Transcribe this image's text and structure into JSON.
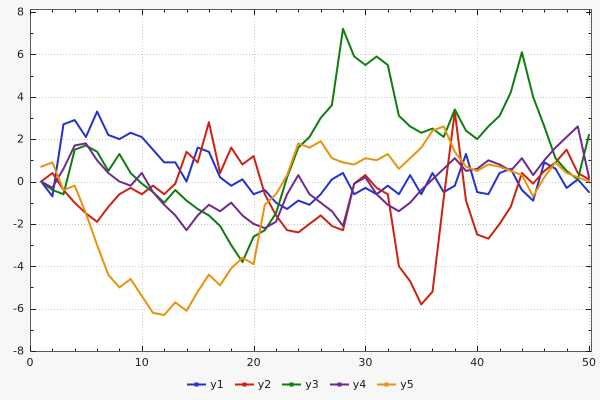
{
  "chart_data": {
    "type": "line",
    "title": "",
    "xlabel": "",
    "ylabel": "",
    "xlim": [
      0,
      50
    ],
    "ylim": [
      -8,
      8
    ],
    "x_ticks": [
      0,
      10,
      20,
      30,
      40,
      50
    ],
    "y_ticks": [
      -8,
      -6,
      -4,
      -2,
      0,
      2,
      4,
      6,
      8
    ],
    "x_minor_step": 2,
    "y_minor_step": 1,
    "grid": true,
    "legend_position": "bottom",
    "background": "#f7f7f7",
    "plot_background": "#ffffff",
    "grid_color": "#c8c8c8",
    "axis_color": "#5a5a5a",
    "text_color": "#1c1c1c",
    "x": [
      1,
      2,
      3,
      4,
      5,
      6,
      7,
      8,
      9,
      10,
      11,
      12,
      13,
      14,
      15,
      16,
      17,
      18,
      19,
      20,
      21,
      22,
      23,
      24,
      25,
      26,
      27,
      28,
      29,
      30,
      31,
      32,
      33,
      34,
      35,
      36,
      37,
      38,
      39,
      40,
      41,
      42,
      43,
      44,
      45,
      46,
      47,
      48,
      49,
      50
    ],
    "series": [
      {
        "name": "y1",
        "color": "#2233cc",
        "values": [
          0.0,
          -0.7,
          2.7,
          2.9,
          2.1,
          3.3,
          2.2,
          2.0,
          2.3,
          2.1,
          1.5,
          0.9,
          0.9,
          0.0,
          1.6,
          1.4,
          0.2,
          -0.2,
          0.1,
          -0.6,
          -0.4,
          -1.0,
          -1.3,
          -0.9,
          -1.1,
          -0.6,
          0.1,
          0.4,
          -0.6,
          -0.3,
          -0.6,
          -0.2,
          -0.6,
          0.3,
          -0.6,
          0.4,
          -0.5,
          -0.2,
          1.3,
          -0.5,
          -0.6,
          0.4,
          0.6,
          -0.4,
          -0.9,
          0.9,
          0.6,
          -0.3,
          0.1,
          -0.5
        ]
      },
      {
        "name": "y2",
        "color": "#cc2211",
        "values": [
          0.0,
          0.4,
          -0.4,
          -1.0,
          -1.5,
          -1.9,
          -1.2,
          -0.6,
          -0.3,
          -0.6,
          -0.2,
          -0.6,
          -0.1,
          1.4,
          0.9,
          2.8,
          0.4,
          1.6,
          0.8,
          1.2,
          -0.6,
          -1.6,
          -2.3,
          -2.4,
          -2.0,
          -1.6,
          -2.1,
          -2.3,
          -0.1,
          0.3,
          -0.3,
          -0.6,
          -4.0,
          -4.7,
          -5.8,
          -5.2,
          -0.8,
          3.3,
          -0.9,
          -2.5,
          -2.7,
          -2.0,
          -1.2,
          0.4,
          -0.1,
          0.5,
          0.9,
          1.5,
          0.4,
          0.1
        ]
      },
      {
        "name": "y3",
        "color": "#0e7d0e",
        "values": [
          0.0,
          -0.4,
          -0.6,
          1.5,
          1.7,
          1.4,
          0.5,
          1.3,
          0.4,
          -0.1,
          -0.5,
          -1.0,
          -0.4,
          -0.9,
          -1.3,
          -1.6,
          -2.1,
          -3.0,
          -3.8,
          -2.6,
          -2.3,
          -1.5,
          0.2,
          1.6,
          2.1,
          3.0,
          3.6,
          7.2,
          5.9,
          5.5,
          5.9,
          5.5,
          3.1,
          2.6,
          2.3,
          2.5,
          2.1,
          3.4,
          2.4,
          2.0,
          2.6,
          3.1,
          4.2,
          6.1,
          4.0,
          2.6,
          1.1,
          0.5,
          0.1,
          2.2
        ]
      },
      {
        "name": "y4",
        "color": "#702a8c",
        "values": [
          0.0,
          -0.3,
          0.6,
          1.7,
          1.8,
          1.0,
          0.4,
          0.0,
          -0.2,
          0.4,
          -0.5,
          -1.1,
          -1.6,
          -2.3,
          -1.6,
          -1.1,
          -1.4,
          -1.0,
          -1.6,
          -2.0,
          -2.2,
          -1.9,
          -0.6,
          0.3,
          -0.6,
          -1.0,
          -1.4,
          -2.1,
          -0.1,
          0.2,
          -0.6,
          -1.1,
          -1.4,
          -1.0,
          -0.4,
          0.1,
          0.6,
          1.1,
          0.5,
          0.6,
          1.0,
          0.8,
          0.5,
          1.1,
          0.3,
          1.0,
          1.6,
          2.1,
          2.6,
          0.2
        ]
      },
      {
        "name": "y5",
        "color": "#e8920e",
        "values": [
          0.7,
          0.9,
          -0.4,
          -0.2,
          -1.5,
          -3.0,
          -4.4,
          -5.0,
          -4.6,
          -5.4,
          -6.2,
          -6.3,
          -5.7,
          -6.1,
          -5.2,
          -4.4,
          -4.9,
          -4.1,
          -3.6,
          -3.9,
          -1.1,
          -0.6,
          0.3,
          1.8,
          1.6,
          1.9,
          1.1,
          0.9,
          0.8,
          1.1,
          1.0,
          1.3,
          0.6,
          1.1,
          1.6,
          2.4,
          2.6,
          1.4,
          0.7,
          0.5,
          0.8,
          0.7,
          0.5,
          0.3,
          -0.7,
          0.2,
          0.9,
          0.4,
          0.2,
          0.0
        ]
      }
    ]
  }
}
